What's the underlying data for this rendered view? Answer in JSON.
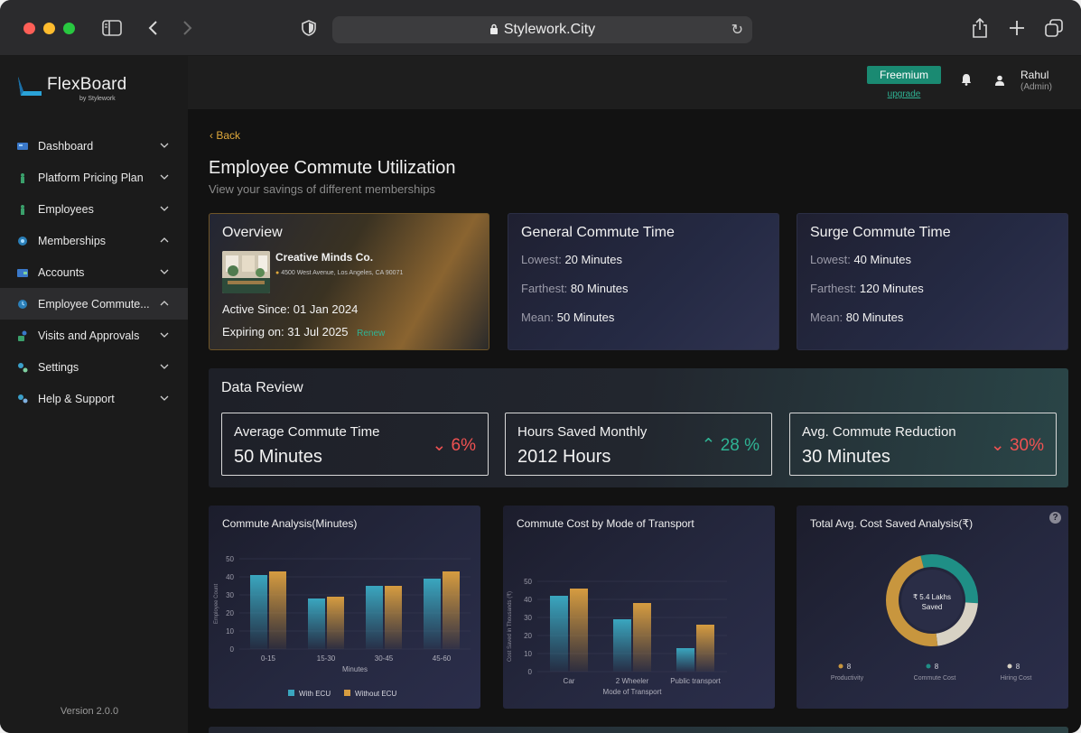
{
  "browser": {
    "url": "Stylework.City"
  },
  "brand": {
    "name": "FlexBoard",
    "byline": "by Stylework"
  },
  "sidebar": {
    "items": [
      {
        "label": "Dashboard",
        "icon": "dashboard-icon",
        "expanded": false
      },
      {
        "label": "Platform Pricing Plan",
        "icon": "pricing-icon",
        "expanded": false
      },
      {
        "label": "Employees",
        "icon": "employees-icon",
        "expanded": false
      },
      {
        "label": "Memberships",
        "icon": "memberships-icon",
        "expanded": true
      },
      {
        "label": "Accounts",
        "icon": "accounts-icon",
        "expanded": false
      },
      {
        "label": "Employee Commute...",
        "icon": "commute-icon",
        "expanded": true
      },
      {
        "label": "Visits and Approvals",
        "icon": "visits-icon",
        "expanded": false
      },
      {
        "label": "Settings",
        "icon": "settings-icon",
        "expanded": false
      },
      {
        "label": "Help & Support",
        "icon": "help-icon",
        "expanded": false
      }
    ],
    "version": "Version 2.0.0"
  },
  "topbar": {
    "plan": "Freemium",
    "upgrade": "upgrade",
    "user_name": "Rahul",
    "user_role": "(Admin)"
  },
  "page": {
    "back": "Back",
    "title": "Employee Commute Utilization",
    "subtitle": "View your savings of different memberships"
  },
  "overview": {
    "title": "Overview",
    "company": "Creative Minds Co.",
    "address": "4500 West Avenue, Los Angeles, CA 90071",
    "active_label": "Active Since:",
    "active_value": "01 Jan 2024",
    "expiring_label": "Expiring on:",
    "expiring_value": "31 Jul 2025",
    "renew": "Renew"
  },
  "general": {
    "title": "General Commute  Time",
    "lowest_label": "Lowest:",
    "lowest": "20 Minutes",
    "farthest_label": "Farthest:",
    "farthest": "80 Minutes",
    "mean_label": "Mean:",
    "mean": "50 Minutes"
  },
  "surge": {
    "title": "Surge Commute  Time",
    "lowest_label": "Lowest:",
    "lowest": "40 Minutes",
    "farthest_label": "Farthest:",
    "farthest": "120 Minutes",
    "mean_label": "Mean:",
    "mean": "80 Minutes"
  },
  "review": {
    "title": "Data Review",
    "metrics": [
      {
        "label": "Average Commute Time",
        "value": "50 Minutes",
        "change": "6%",
        "direction": "down"
      },
      {
        "label": "Hours Saved Monthly",
        "value": "2012 Hours",
        "change": "28 %",
        "direction": "up"
      },
      {
        "label": "Avg. Commute Reduction",
        "value": "30 Minutes",
        "change": "30%",
        "direction": "down"
      }
    ]
  },
  "colors": {
    "with": "#3aa6bf",
    "without": "#d69c40",
    "teal": "#1f8f86",
    "gold": "#c8963e",
    "grey": "#d8d2c4"
  },
  "chart_data": [
    {
      "type": "bar",
      "title": "Commute Analysis(Minutes)",
      "xlabel": "Minutes",
      "ylabel": "Employee Count",
      "ylim": [
        0,
        50
      ],
      "yticks": [
        "0",
        "10",
        "20",
        "30",
        "40",
        "50"
      ],
      "categories": [
        "0-15",
        "15-30",
        "30-45",
        "45-60"
      ],
      "series": [
        {
          "name": "With ECU",
          "values": [
            41,
            28,
            35,
            39
          ]
        },
        {
          "name": "Without ECU",
          "values": [
            43,
            29,
            35,
            43
          ]
        }
      ]
    },
    {
      "type": "bar",
      "title": "Commute Cost by Mode of Transport",
      "xlabel": "Mode of Transport",
      "ylabel": "Cost Saved in Thousands (₹)",
      "ylim": [
        0,
        50
      ],
      "yticks": [
        "0",
        "10",
        "20",
        "30",
        "40",
        "50"
      ],
      "categories": [
        "Car",
        "2 Wheeler",
        "Public transport"
      ],
      "series": [
        {
          "name": "With ECU",
          "values": [
            42,
            29,
            13
          ]
        },
        {
          "name": "Without ECU",
          "values": [
            46,
            38,
            26
          ]
        }
      ]
    },
    {
      "type": "pie",
      "title": "Total Avg. Cost Saved Analysis(₹)",
      "center_label": "₹ 5.4 Lakhs Saved",
      "labels": [
        "Productivity",
        "Commute Cost",
        "Hiring Cost"
      ],
      "value_labels": [
        "8",
        "8",
        "8"
      ],
      "shares": [
        0.48,
        0.3,
        0.22
      ]
    }
  ]
}
